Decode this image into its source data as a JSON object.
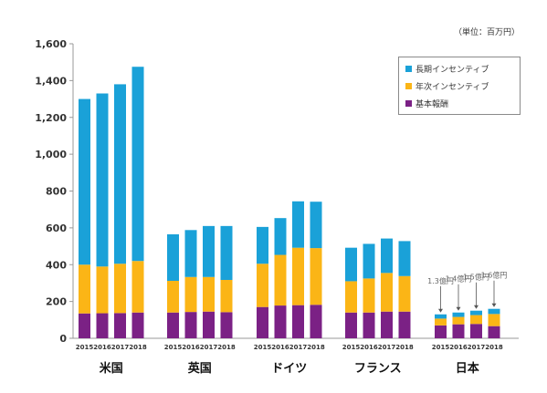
{
  "unit_label": "（単位：百万円）",
  "colors": {
    "base": "#7b2185",
    "annual": "#fbb516",
    "long": "#1aa1d8",
    "axis": "#999999",
    "text": "#333333"
  },
  "chart_data": {
    "type": "bar",
    "stacked": true,
    "ylim": [
      0,
      1600
    ],
    "yticks": [
      "0",
      "200",
      "400",
      "600",
      "800",
      "1,000",
      "1,200",
      "1,400",
      "1,600"
    ],
    "ytick_values": [
      0,
      200,
      400,
      600,
      800,
      1000,
      1200,
      1400,
      1600
    ],
    "grid": false,
    "legend_position": "top-right",
    "years": [
      "2015",
      "2016",
      "2017",
      "2018"
    ],
    "groups": [
      {
        "label": "米国",
        "base": [
          135,
          136,
          137,
          140
        ],
        "annual": [
          265,
          254,
          268,
          280
        ],
        "long": [
          900,
          940,
          975,
          1055
        ]
      },
      {
        "label": "英国",
        "base": [
          140,
          143,
          145,
          142
        ],
        "annual": [
          172,
          190,
          188,
          175
        ],
        "long": [
          253,
          255,
          277,
          293
        ]
      },
      {
        "label": "ドイツ",
        "base": [
          170,
          178,
          180,
          182
        ],
        "annual": [
          235,
          275,
          312,
          308
        ],
        "long": [
          200,
          200,
          252,
          252
        ]
      },
      {
        "label": "フランス",
        "base": [
          140,
          140,
          145,
          145
        ],
        "annual": [
          170,
          185,
          210,
          193
        ],
        "long": [
          182,
          188,
          187,
          190
        ]
      },
      {
        "label": "日本",
        "base": [
          70,
          76,
          78,
          66
        ],
        "annual": [
          37,
          40,
          48,
          66
        ],
        "long": [
          23,
          24,
          24,
          28
        ],
        "annotations": [
          "1.3億円",
          "1.4億円",
          "1.5億円",
          "1.6億円"
        ]
      }
    ],
    "legend": [
      {
        "key": "long",
        "label": "長期インセンティブ"
      },
      {
        "key": "annual",
        "label": "年次インセンティブ"
      },
      {
        "key": "base",
        "label": "基本報酬"
      }
    ]
  }
}
